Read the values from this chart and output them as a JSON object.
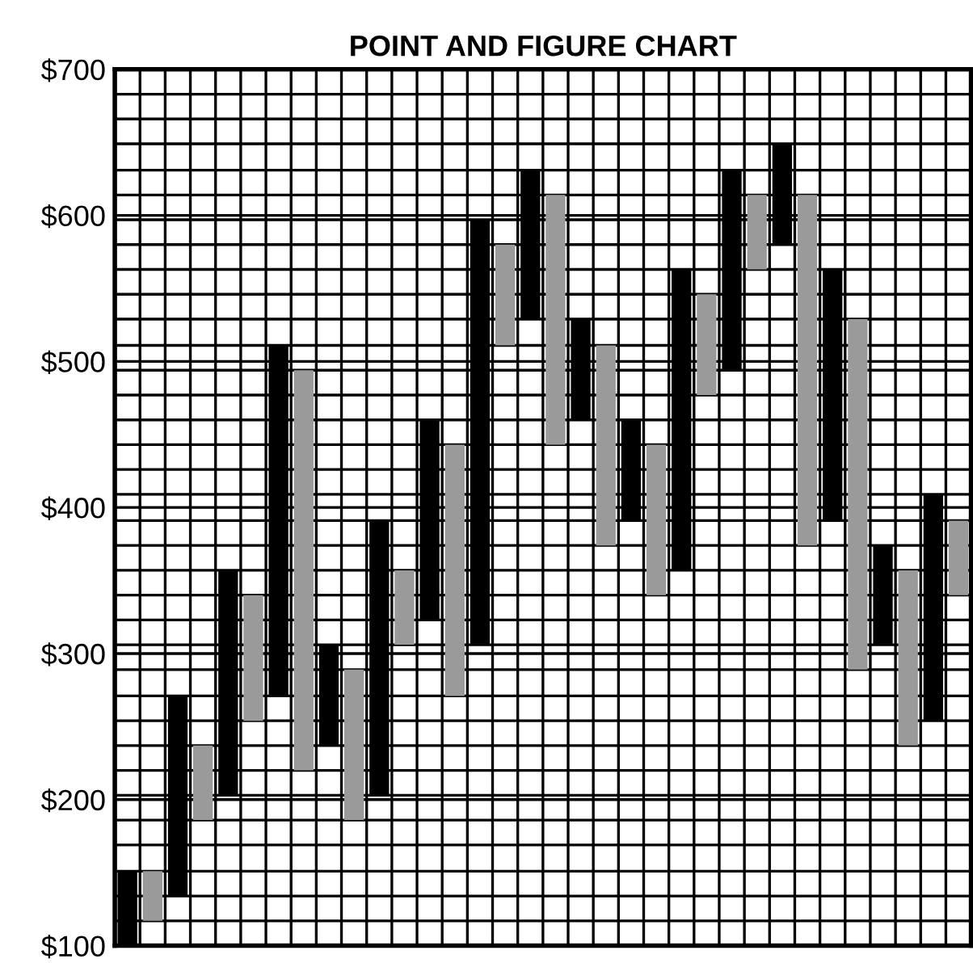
{
  "chart_data": {
    "type": "bar",
    "title": "POINT AND FIGURE CHART",
    "grid": true,
    "ylim": [
      100,
      700
    ],
    "categories": [
      null,
      null,
      null,
      null,
      null,
      null,
      null,
      null,
      null,
      null,
      null,
      null,
      null,
      null,
      null,
      null,
      null,
      null,
      null,
      null,
      null,
      null,
      null,
      null,
      null,
      null,
      null,
      null,
      null,
      null,
      null,
      null,
      null,
      null
    ],
    "yticks": [
      {
        "value": 100,
        "label": "$100"
      },
      {
        "value": 117,
        "label": null
      },
      {
        "value": 134,
        "label": null
      },
      {
        "value": 151,
        "label": null
      },
      {
        "value": 169,
        "label": null
      },
      {
        "value": 186,
        "label": null
      },
      {
        "value": 200,
        "label": "$200"
      },
      {
        "value": 203,
        "label": null
      },
      {
        "value": 220,
        "label": null
      },
      {
        "value": 237,
        "label": null
      },
      {
        "value": 254,
        "label": null
      },
      {
        "value": 271,
        "label": null
      },
      {
        "value": 289,
        "label": null
      },
      {
        "value": 300,
        "label": "$300"
      },
      {
        "value": 306,
        "label": null
      },
      {
        "value": 323,
        "label": null
      },
      {
        "value": 340,
        "label": null
      },
      {
        "value": 357,
        "label": null
      },
      {
        "value": 374,
        "label": null
      },
      {
        "value": 391,
        "label": null
      },
      {
        "value": 400,
        "label": "$400"
      },
      {
        "value": 409,
        "label": null
      },
      {
        "value": 426,
        "label": null
      },
      {
        "value": 443,
        "label": null
      },
      {
        "value": 460,
        "label": null
      },
      {
        "value": 477,
        "label": null
      },
      {
        "value": 494,
        "label": null
      },
      {
        "value": 500,
        "label": "$500"
      },
      {
        "value": 511,
        "label": null
      },
      {
        "value": 529,
        "label": null
      },
      {
        "value": 546,
        "label": null
      },
      {
        "value": 563,
        "label": null
      },
      {
        "value": 580,
        "label": null
      },
      {
        "value": 597,
        "label": null
      },
      {
        "value": 600,
        "label": "$600"
      },
      {
        "value": 614,
        "label": null
      },
      {
        "value": 631,
        "label": null
      },
      {
        "value": 649,
        "label": null
      },
      {
        "value": 666,
        "label": null
      },
      {
        "value": 683,
        "label": null
      },
      {
        "value": 700,
        "label": "$700"
      }
    ],
    "base": [
      100,
      117,
      134,
      186,
      203,
      254,
      271,
      220,
      237,
      186,
      203,
      306,
      323,
      271,
      306,
      511,
      529,
      443,
      460,
      374,
      391,
      340,
      357,
      477,
      494,
      563,
      580,
      374,
      391,
      289,
      306,
      237,
      254,
      340
    ],
    "values": [
      51,
      34,
      137,
      51,
      154,
      86,
      240,
      274,
      69,
      103,
      188,
      51,
      137,
      172,
      291,
      69,
      102,
      171,
      69,
      137,
      69,
      103,
      206,
      69,
      137,
      51,
      69,
      240,
      172,
      240,
      68,
      120,
      155,
      51
    ],
    "colors": [
      "#000000",
      "#9a9a9a",
      "#000000",
      "#9a9a9a",
      "#000000",
      "#9a9a9a",
      "#000000",
      "#9a9a9a",
      "#000000",
      "#9a9a9a",
      "#000000",
      "#9a9a9a",
      "#000000",
      "#9a9a9a",
      "#000000",
      "#9a9a9a",
      "#000000",
      "#9a9a9a",
      "#000000",
      "#9a9a9a",
      "#000000",
      "#9a9a9a",
      "#000000",
      "#9a9a9a",
      "#000000",
      "#9a9a9a",
      "#000000",
      "#9a9a9a",
      "#000000",
      "#9a9a9a",
      "#000000",
      "#9a9a9a",
      "#000000",
      "#9a9a9a"
    ]
  }
}
